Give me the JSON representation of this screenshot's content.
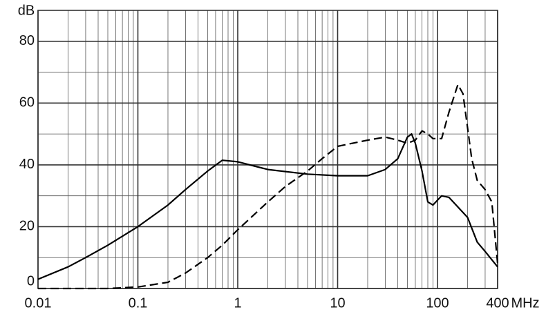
{
  "chart_data": {
    "type": "line",
    "x_label": "MHz",
    "y_label": "dB",
    "xscale": "log",
    "xlim": [
      0.01,
      400
    ],
    "ylim": [
      0,
      90
    ],
    "xticks": [
      0.01,
      0.1,
      1,
      10,
      100,
      400
    ],
    "yticks": [
      0,
      20,
      40,
      60,
      80
    ],
    "minor_xticks": [
      0.02,
      0.03,
      0.04,
      0.05,
      0.06,
      0.07,
      0.08,
      0.09,
      0.2,
      0.3,
      0.4,
      0.5,
      0.6,
      0.7,
      0.8,
      0.9,
      2,
      3,
      4,
      5,
      6,
      7,
      8,
      9,
      20,
      30,
      40,
      50,
      60,
      70,
      80,
      90,
      200,
      300
    ],
    "minor_yticks": [
      10,
      30,
      50,
      70,
      90
    ],
    "grid": true,
    "series": [
      {
        "color": "#000000",
        "dash": "solid",
        "x": [
          0.01,
          0.02,
          0.03,
          0.05,
          0.1,
          0.2,
          0.3,
          0.5,
          0.7,
          1,
          2,
          5,
          10,
          20,
          30,
          40,
          50,
          55,
          60,
          70,
          80,
          90,
          110,
          130,
          200,
          250,
          300,
          400
        ],
        "values": [
          3,
          7,
          10,
          14,
          20,
          27,
          32,
          38,
          41.5,
          41,
          38.5,
          37,
          36.5,
          36.5,
          38.5,
          42,
          49,
          50,
          47,
          38,
          28,
          27,
          30,
          29.5,
          23,
          15,
          12,
          7
        ]
      },
      {
        "color": "#000000",
        "dash": "dashed",
        "x": [
          0.01,
          0.05,
          0.1,
          0.2,
          0.3,
          0.5,
          0.7,
          1,
          2,
          3,
          5,
          7,
          10,
          20,
          30,
          40,
          50,
          60,
          70,
          80,
          90,
          110,
          130,
          160,
          180,
          220,
          250,
          300,
          350,
          400
        ],
        "values": [
          0,
          0,
          0.5,
          2,
          5,
          10,
          14,
          19,
          28,
          33,
          38,
          42,
          46,
          48,
          49,
          48,
          47,
          48,
          51,
          50,
          48.5,
          48.5,
          57,
          66,
          63,
          42,
          35,
          32,
          28,
          8
        ]
      }
    ]
  }
}
